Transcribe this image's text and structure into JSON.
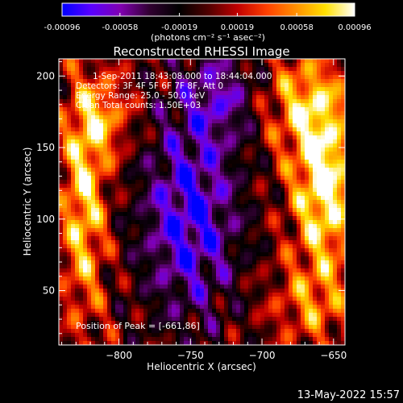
{
  "colorbar": {
    "tick_labels": [
      "-0.00096",
      "-0.00058",
      "-0.00019",
      "0.00019",
      "0.00058",
      "0.00096"
    ],
    "tick_values": [
      -0.00096,
      -0.00058,
      -0.00019,
      0.00019,
      0.00058,
      0.00096
    ],
    "range": [
      -0.00096,
      0.00096
    ],
    "units_label": "(photons cm⁻² s⁻¹ asec⁻²)",
    "colors": [
      "#0000ff",
      "#5a00ff",
      "#8000b0",
      "#300030",
      "#000000",
      "#500000",
      "#c00000",
      "#ff4000",
      "#ff9000",
      "#ffe000",
      "#ffffff"
    ]
  },
  "chart_data": {
    "type": "heatmap",
    "title": "Reconstructed RHESSI Image",
    "xlabel": "Heliocentric X (arcsec)",
    "ylabel": "Heliocentric Y (arcsec)",
    "xlim": [
      -842,
      -642
    ],
    "ylim": [
      12,
      212
    ],
    "x_ticks": [
      -800,
      -750,
      -700,
      -650
    ],
    "y_ticks": [
      50,
      100,
      150,
      200
    ],
    "x_tick_labels": [
      "−800",
      "−750",
      "−700",
      "−650"
    ],
    "y_tick_labels": [
      "50",
      "100",
      "150",
      "200"
    ],
    "annotations": [
      "1-Sep-2011 18:43:08.000 to 18:44:04.000",
      "Detectors: 3F 4F 5F 6F 7F 8F, Att 0",
      "Energy Range: 25.0 - 50.0 keV",
      "Clean     Total counts: 1.50E+03"
    ],
    "peak_label": "Position of Peak = [-661,86]",
    "peak_position": [
      -661,
      86
    ],
    "grid": false
  },
  "footer": {
    "timestamp": "13-May-2022 15:57"
  }
}
